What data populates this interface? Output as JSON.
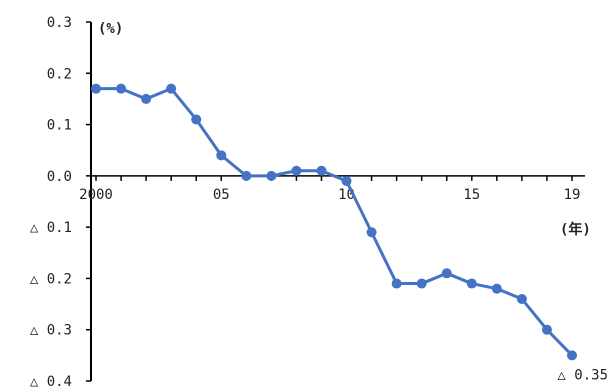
{
  "chart_data": {
    "type": "line",
    "y_unit_label": "(%)",
    "x_unit_label": "(年)",
    "ylim": [
      -0.4,
      0.3
    ],
    "y_ticks": [
      0.3,
      0.2,
      0.1,
      0.0,
      -0.1,
      -0.2,
      -0.3,
      -0.4
    ],
    "y_tick_labels": [
      "0.3",
      "0.2",
      "0.1",
      "0.0",
      "△ 0.1",
      "△ 0.2",
      "△ 0.3",
      "△ 0.4"
    ],
    "x_tick_years": [
      2000,
      2005,
      2010,
      2015,
      2019
    ],
    "x_tick_labels": [
      "2000",
      "05",
      "10",
      "15",
      "19"
    ],
    "x": [
      2000,
      2001,
      2002,
      2003,
      2004,
      2005,
      2006,
      2007,
      2008,
      2009,
      2010,
      2011,
      2012,
      2013,
      2014,
      2015,
      2016,
      2017,
      2018,
      2019
    ],
    "values": [
      0.17,
      0.17,
      0.15,
      0.17,
      0.11,
      0.04,
      0.0,
      0.0,
      0.01,
      0.01,
      -0.01,
      -0.11,
      -0.21,
      -0.21,
      -0.19,
      -0.21,
      -0.22,
      -0.24,
      -0.3,
      -0.35
    ],
    "legend": false,
    "grid": false,
    "annotation": {
      "year": 2019,
      "text": "△ 0.35"
    },
    "series_color": "#4472C4"
  }
}
